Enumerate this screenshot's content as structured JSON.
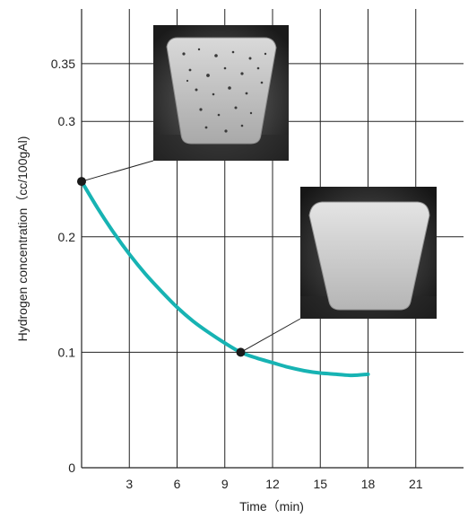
{
  "chart_data": {
    "type": "line",
    "xlabel": "Time（min)",
    "ylabel": "Hydrogen concentration（cc/100gAl)",
    "xlim": [
      0,
      24
    ],
    "ylim": [
      0,
      0.39
    ],
    "x_ticks": [
      3,
      6,
      9,
      12,
      15,
      18,
      21
    ],
    "y_ticks": [
      {
        "value": 0,
        "label": "0"
      },
      {
        "value": 0.1,
        "label": "0.1"
      },
      {
        "value": 0.2,
        "label": "0.2"
      },
      {
        "value": 0.3,
        "label": "0.3"
      },
      {
        "value": 0.35,
        "label": "0.35"
      }
    ],
    "grid": true,
    "series": [
      {
        "x": [
          0,
          1,
          2,
          3,
          4,
          5,
          6,
          7,
          8,
          9,
          10,
          11,
          12,
          13,
          14,
          15,
          16,
          17,
          18
        ],
        "y": [
          0.248,
          0.225,
          0.204,
          0.185,
          0.168,
          0.153,
          0.139,
          0.127,
          0.117,
          0.108,
          0.1,
          0.095,
          0.091,
          0.087,
          0.084,
          0.082,
          0.081,
          0.08,
          0.081
        ]
      }
    ],
    "markers": [
      {
        "x": 0,
        "y": 0.248
      },
      {
        "x": 10,
        "y": 0.1
      }
    ],
    "colors": {
      "curve": "#17b3b3",
      "marker": "#1a1a1a",
      "grid": "#222222"
    }
  },
  "photos": [
    {
      "name": "porous-casting-sample-photo",
      "anchor": 0
    },
    {
      "name": "dense-casting-sample-photo",
      "anchor": 1
    }
  ]
}
